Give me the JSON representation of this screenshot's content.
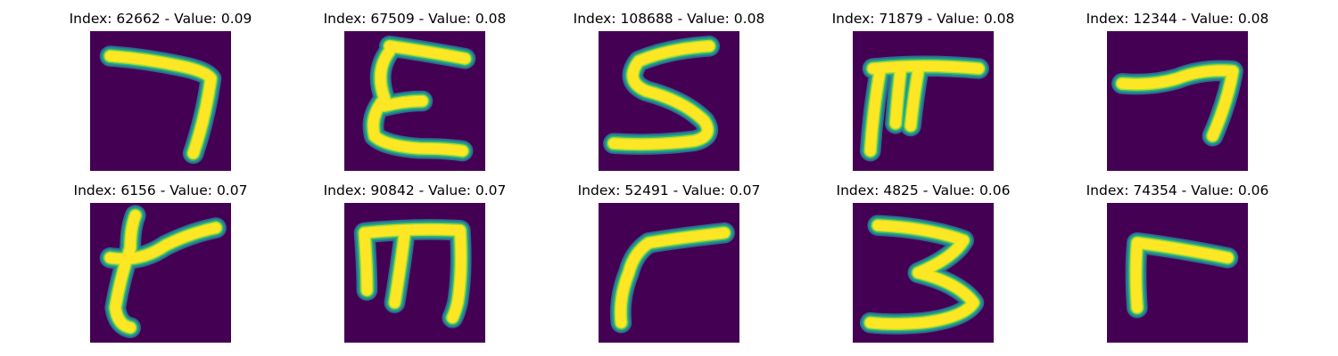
{
  "colors": {
    "background": "#440154",
    "stroke_inner": "#fde725",
    "stroke_edge_1": "#b5de2b",
    "stroke_edge_2": "#35b779",
    "stroke_edge_3": "#21918c",
    "stroke_edge_4": "#31688e"
  },
  "panels": [
    {
      "title": "Index: 62662 - Value: 0.09",
      "glyph": "7"
    },
    {
      "title": "Index: 67509 - Value: 0.08",
      "glyph": "E"
    },
    {
      "title": "Index: 108688 - Value: 0.08",
      "glyph": "S"
    },
    {
      "title": "Index: 71879 - Value: 0.08",
      "glyph": "rake"
    },
    {
      "title": "Index: 12344 - Value: 0.08",
      "glyph": "7"
    },
    {
      "title": "Index: 6156 - Value: 0.07",
      "glyph": "Y"
    },
    {
      "title": "Index: 90842 - Value: 0.07",
      "glyph": "m"
    },
    {
      "title": "Index: 52491 - Value: 0.07",
      "glyph": "r"
    },
    {
      "title": "Index: 4825 - Value: 0.06",
      "glyph": "3"
    },
    {
      "title": "Index: 74354 - Value: 0.06",
      "glyph": "r"
    }
  ]
}
